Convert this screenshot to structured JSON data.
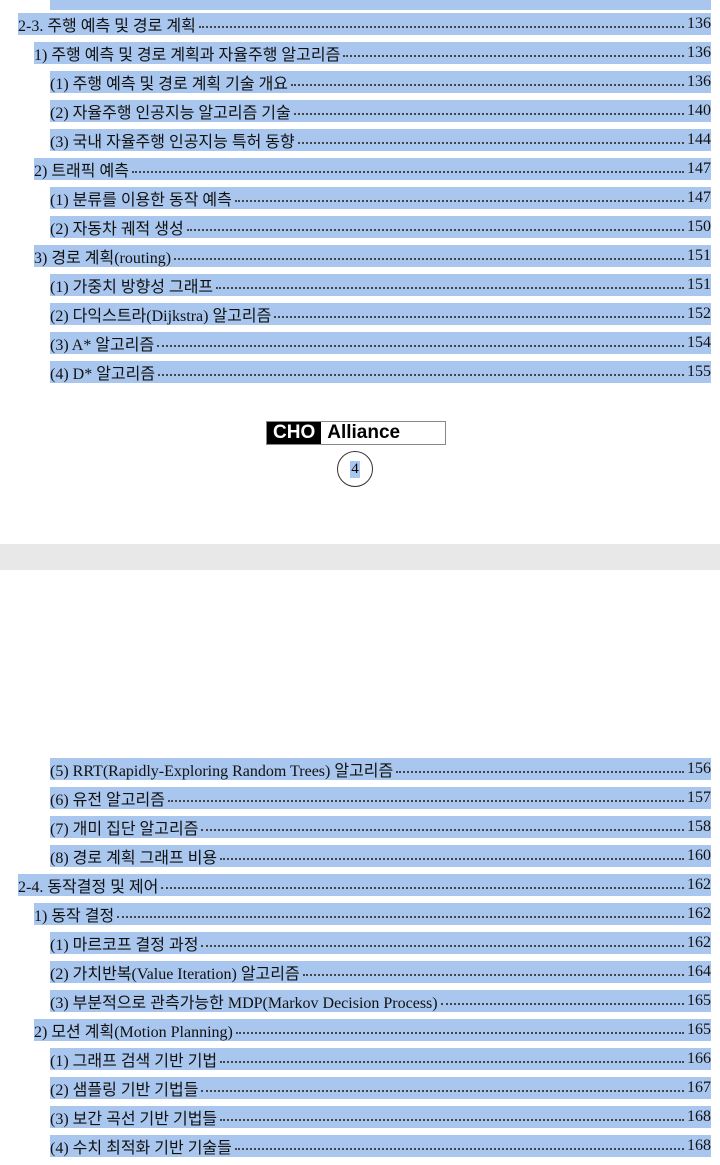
{
  "pages": [
    {
      "entries": [
        {
          "label": "2-3. 주행 예측 및 경로 계획",
          "page": 136
        },
        {
          "label": "1) 주행 예측 및 경로 계획과 자율주행 알고리즘",
          "page": 136
        },
        {
          "label": "(1) 주행 예측 및 경로 계획 기술 개요",
          "page": 136
        },
        {
          "label": "(2) 자율주행 인공지능 알고리즘 기술",
          "page": 140
        },
        {
          "label": "(3) 국내 자율주행 인공지능 특허 동향",
          "page": 144
        },
        {
          "label": "2) 트래픽 예측",
          "page": 147
        },
        {
          "label": "(1) 분류를 이용한 동작 예측",
          "page": 147
        },
        {
          "label": "(2) 자동차 궤적 생성",
          "page": 150
        },
        {
          "label": "3) 경로 계획(routing)",
          "page": 151
        },
        {
          "label": "(1) 가중치 방향성 그래프",
          "page": 151
        },
        {
          "label": "(2) 다익스트라(Dijkstra) 알고리즘",
          "page": 152
        },
        {
          "label": "(3) A* 알고리즘",
          "page": 154
        },
        {
          "label": "(4) D* 알고리즘",
          "page": 155
        }
      ],
      "logo": {
        "left": "CHO",
        "right": "Alliance"
      },
      "page_number": 4
    },
    {
      "entries": [
        {
          "label": "(5) RRT(Rapidly-Exploring Random Trees) 알고리즘",
          "page": 156
        },
        {
          "label": "(6) 유전 알고리즘",
          "page": 157
        },
        {
          "label": "(7) 개미 집단 알고리즘",
          "page": 158
        },
        {
          "label": "(8) 경로 계획 그래프 비용",
          "page": 160
        },
        {
          "label": "2-4. 동작결정 및 제어",
          "page": 162
        },
        {
          "label": "1) 동작 결정",
          "page": 162
        },
        {
          "label": "(1) 마르코프 결정 과정",
          "page": 162
        },
        {
          "label": "(2) 가치반복(Value Iteration) 알고리즘",
          "page": 164
        },
        {
          "label": "(3) 부분적으로 관측가능한 MDP(Markov Decision Process)",
          "page": 165
        },
        {
          "label": "2) 모션 계획(Motion Planning)",
          "page": 165
        },
        {
          "label": "(1) 그래프 검색 기반 기법",
          "page": 166
        },
        {
          "label": "(2) 샘플링 기반 기법들",
          "page": 167
        },
        {
          "label": "(3) 보간 곡선 기반 기법들",
          "page": 168
        },
        {
          "label": "(4) 수치 최적화 기반 기술들",
          "page": 168
        }
      ]
    }
  ]
}
